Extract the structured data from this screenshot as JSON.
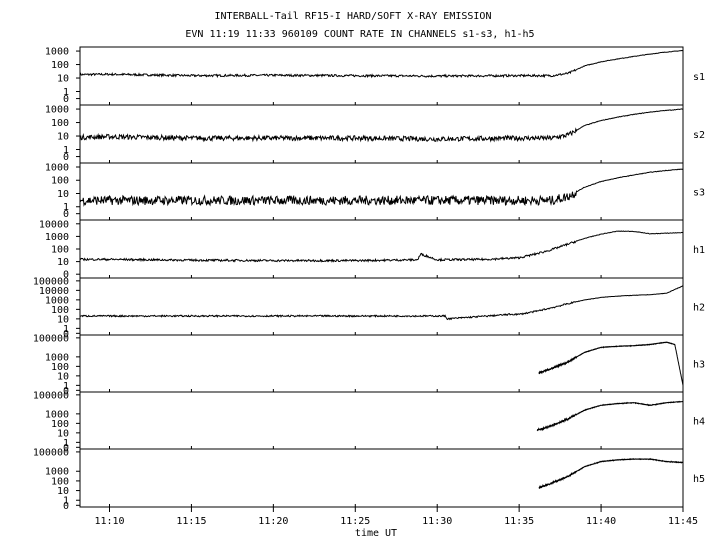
{
  "chart_data": {
    "type": "line",
    "title": "INTERBALL-Tail RF15-I HARD/SOFT X-RAY EMISSION",
    "subtitle": "EVN 11:19 11:33 960109  COUNT RATE IN CHANNELS s1-s3, h1-h5",
    "xlabel": "time UT",
    "x_ticks": [
      "11:10",
      "11:15",
      "11:20",
      "11:25",
      "11:30",
      "11:35",
      "11:40",
      "11:45"
    ],
    "x_tick_minutes": [
      10,
      15,
      20,
      25,
      30,
      35,
      40,
      45
    ],
    "xlim_minutes": [
      8.2,
      45
    ],
    "yscale": "log",
    "grid": false,
    "panels": [
      {
        "name": "s1",
        "y_ticks": [
          "1000",
          "100",
          "10",
          "1",
          "0"
        ],
        "y_tick_values": [
          1000,
          100,
          10,
          1,
          0.3
        ],
        "ylim": [
          0.1,
          2000
        ],
        "series": {
          "x": [
            8.2,
            10,
            15,
            20,
            25,
            30,
            35,
            37,
            38,
            39,
            40,
            41,
            42,
            43,
            44,
            45
          ],
          "values": [
            18,
            19,
            15,
            16,
            15,
            14,
            15,
            15,
            22,
            80,
            160,
            260,
            400,
            600,
            850,
            1100
          ]
        }
      },
      {
        "name": "s2",
        "y_ticks": [
          "1000",
          "100",
          "10",
          "1",
          "0"
        ],
        "y_tick_values": [
          1000,
          100,
          10,
          1,
          0.3
        ],
        "ylim": [
          0.1,
          2000
        ],
        "series": {
          "x": [
            8.2,
            10,
            15,
            20,
            25,
            30,
            35,
            37,
            38,
            39,
            40,
            41,
            42,
            43,
            44,
            45
          ],
          "values": [
            8,
            9,
            7,
            7,
            7,
            6,
            7,
            7,
            12,
            60,
            140,
            250,
            400,
            600,
            800,
            1000
          ]
        }
      },
      {
        "name": "s3",
        "y_ticks": [
          "1000",
          "100",
          "10",
          "1",
          "0"
        ],
        "y_tick_values": [
          1000,
          100,
          10,
          1,
          0.3
        ],
        "ylim": [
          0.1,
          2000
        ],
        "series": {
          "x": [
            8.2,
            10,
            15,
            20,
            25,
            30,
            35,
            37,
            38,
            39,
            40,
            41,
            42,
            43,
            44,
            45
          ],
          "values": [
            3,
            3,
            3,
            3,
            3,
            3,
            3,
            3,
            6,
            30,
            80,
            150,
            250,
            400,
            550,
            700
          ]
        }
      },
      {
        "name": "h1",
        "y_ticks": [
          "10000",
          "1000",
          "100",
          "10",
          "0"
        ],
        "y_tick_values": [
          10000,
          1000,
          100,
          10,
          1
        ],
        "ylim": [
          0.5,
          20000
        ],
        "series": {
          "x": [
            8.2,
            10,
            15,
            20,
            25,
            28.8,
            29,
            30,
            33,
            35,
            36,
            37,
            38,
            39,
            40,
            41,
            42,
            43,
            44,
            45
          ],
          "values": [
            15,
            15,
            13,
            12,
            12,
            14,
            40,
            14,
            15,
            20,
            40,
            90,
            250,
            700,
            1500,
            2600,
            2500,
            1600,
            1800,
            2000
          ]
        }
      },
      {
        "name": "h2",
        "y_ticks": [
          "100000",
          "10000",
          "1000",
          "100",
          "10",
          "1",
          "0"
        ],
        "y_tick_values": [
          100000,
          10000,
          1000,
          100,
          10,
          1,
          0.3
        ],
        "ylim": [
          0.2,
          200000
        ],
        "series": {
          "x": [
            8.2,
            28.5,
            30.5,
            30.6,
            34.5,
            35,
            36,
            37,
            38,
            39,
            40,
            41,
            42,
            43,
            44,
            45
          ],
          "values": [
            20,
            20,
            20,
            10,
            30,
            30,
            60,
            150,
            400,
            1000,
            1800,
            2500,
            3000,
            3500,
            5000,
            30000
          ]
        }
      },
      {
        "name": "h3",
        "y_ticks": [
          "100000",
          "1000",
          "100",
          "10",
          "1",
          "0"
        ],
        "y_tick_values": [
          100000,
          1000,
          100,
          10,
          1,
          0.3
        ],
        "ylim": [
          0.2,
          200000
        ],
        "series": {
          "x": [
            36.2,
            36.5,
            37,
            38,
            39,
            40,
            41,
            42,
            43,
            44,
            44.5,
            45
          ],
          "values": [
            20,
            30,
            60,
            300,
            3000,
            10000,
            13000,
            15000,
            20000,
            35000,
            20000,
            1
          ]
        }
      },
      {
        "name": "h4",
        "y_ticks": [
          "100000",
          "1000",
          "100",
          "10",
          "1",
          "0"
        ],
        "y_tick_values": [
          100000,
          1000,
          100,
          10,
          1,
          0.3
        ],
        "ylim": [
          0.2,
          200000
        ],
        "series": {
          "x": [
            36.1,
            36.5,
            37,
            38,
            39,
            40,
            41,
            42,
            43,
            44,
            45
          ],
          "values": [
            20,
            30,
            60,
            300,
            2500,
            8000,
            12000,
            15000,
            8000,
            15000,
            20000
          ]
        }
      },
      {
        "name": "h5",
        "y_ticks": [
          "100000",
          "1000",
          "100",
          "10",
          "1",
          "0"
        ],
        "y_tick_values": [
          100000,
          1000,
          100,
          10,
          1,
          0.3
        ],
        "ylim": [
          0.2,
          200000
        ],
        "series": {
          "x": [
            36.2,
            36.5,
            37,
            38,
            39,
            40,
            41,
            42,
            43,
            44,
            45
          ],
          "values": [
            20,
            30,
            60,
            300,
            3000,
            10000,
            15000,
            18000,
            18000,
            10000,
            8000
          ]
        }
      }
    ]
  }
}
